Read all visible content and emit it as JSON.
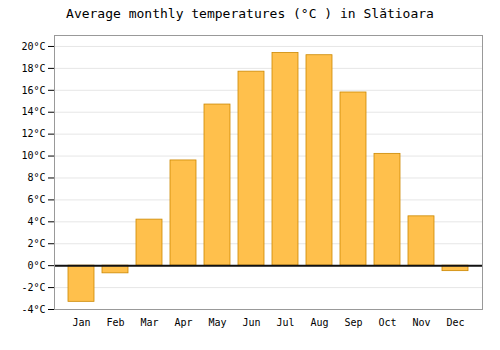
{
  "chart_data": {
    "type": "bar",
    "title": "Average monthly temperatures (°C ) in Slătioara",
    "categories": [
      "Jan",
      "Feb",
      "Mar",
      "Apr",
      "May",
      "Jun",
      "Jul",
      "Aug",
      "Sep",
      "Oct",
      "Nov",
      "Dec"
    ],
    "values": [
      -3.3,
      -0.7,
      4.2,
      9.6,
      14.7,
      17.7,
      19.4,
      19.2,
      15.8,
      10.2,
      4.5,
      -0.5
    ],
    "color": "#FFC04C",
    "ylim": [
      -4,
      21
    ],
    "yticks": [
      {
        "value": -4,
        "label": "-4°C"
      },
      {
        "value": -2,
        "label": "-2°C"
      },
      {
        "value": 0,
        "label": "0°C"
      },
      {
        "value": 2,
        "label": "2°C"
      },
      {
        "value": 4,
        "label": "4°C"
      },
      {
        "value": 6,
        "label": "6°C"
      },
      {
        "value": 8,
        "label": "8°C"
      },
      {
        "value": 10,
        "label": "10°C"
      },
      {
        "value": 12,
        "label": "12°C"
      },
      {
        "value": 14,
        "label": "14°C"
      },
      {
        "value": 16,
        "label": "16°C"
      },
      {
        "value": 18,
        "label": "18°C"
      },
      {
        "value": 20,
        "label": "20°C"
      }
    ],
    "grid": true
  }
}
